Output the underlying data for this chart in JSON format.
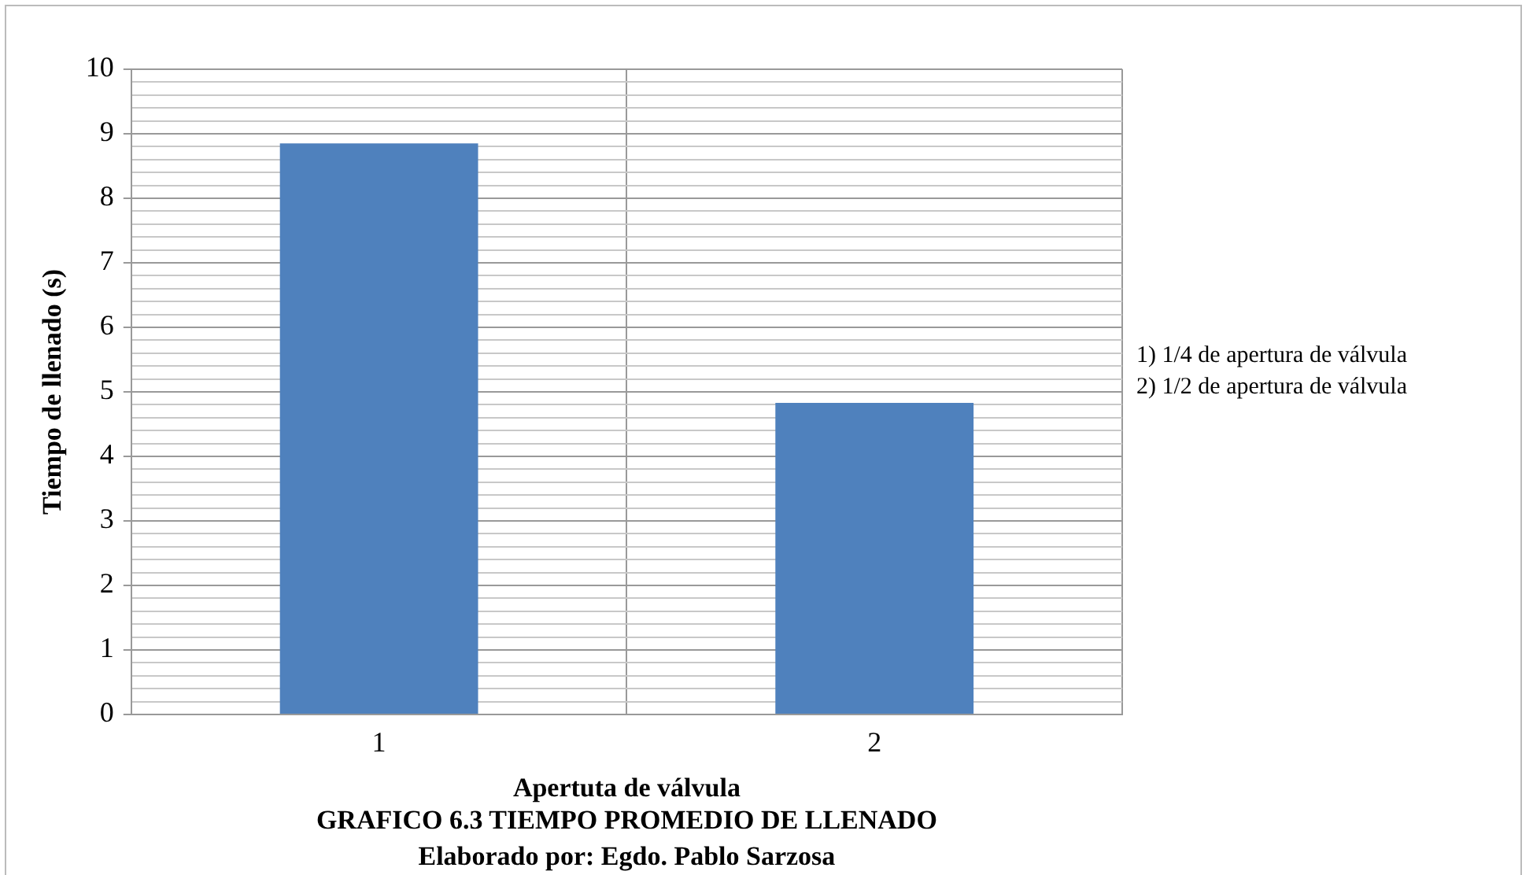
{
  "chart_data": {
    "type": "bar",
    "title": "GRAFICO 6.3 TIEMPO PROMEDIO DE LLENADO",
    "subtitle": "Elaborado por: Egdo. Pablo Sarzosa",
    "xlabel": "Apertuta de válvula",
    "ylabel": "Tiempo de llenado (s)",
    "categories": [
      "1",
      "2"
    ],
    "values": [
      8.85,
      4.83
    ],
    "color": "#4f81bd",
    "ylim": [
      0,
      10
    ],
    "yticks": [
      0,
      {
        "value": 0.2,
        "label": null
      },
      {
        "value": 0.4,
        "label": null
      },
      {
        "value": 0.6,
        "label": null
      },
      {
        "value": 0.8,
        "label": null
      },
      1,
      {
        "value": 1.2,
        "label": null
      },
      {
        "value": 1.4,
        "label": null
      },
      {
        "value": 1.6,
        "label": null
      },
      {
        "value": 1.8,
        "label": null
      },
      2,
      {
        "value": 2.2,
        "label": null
      },
      {
        "value": 2.4,
        "label": null
      },
      {
        "value": 2.6,
        "label": null
      },
      {
        "value": 2.8,
        "label": null
      },
      3,
      {
        "value": 3.2,
        "label": null
      },
      {
        "value": 3.4,
        "label": null
      },
      {
        "value": 3.6,
        "label": null
      },
      {
        "value": 3.8,
        "label": null
      },
      4,
      {
        "value": 4.2,
        "label": null
      },
      {
        "value": 4.4,
        "label": null
      },
      {
        "value": 4.6,
        "label": null
      },
      {
        "value": 4.8,
        "label": null
      },
      5,
      {
        "value": 5.2,
        "label": null
      },
      {
        "value": 5.4,
        "label": null
      },
      {
        "value": 5.6,
        "label": null
      },
      {
        "value": 5.8,
        "label": null
      },
      6,
      {
        "value": 6.2,
        "label": null
      },
      {
        "value": 6.4,
        "label": null
      },
      {
        "value": 6.6,
        "label": null
      },
      {
        "value": 6.8,
        "label": null
      },
      7,
      {
        "value": 7.2,
        "label": null
      },
      {
        "value": 7.4,
        "label": null
      },
      {
        "value": 7.6,
        "label": null
      },
      {
        "value": 7.8,
        "label": null
      },
      8,
      {
        "value": 8.2,
        "label": null
      },
      {
        "value": 8.4,
        "label": null
      },
      {
        "value": 8.6,
        "label": null
      },
      {
        "value": 8.8,
        "label": null
      },
      9,
      {
        "value": 9.2,
        "label": null
      },
      {
        "value": 9.4,
        "label": null
      },
      {
        "value": 9.6,
        "label": null
      },
      {
        "value": 9.8,
        "label": null
      },
      10
    ],
    "grid": true,
    "annotations": [
      "1) 1/4 de apertura de válvula",
      "2) 1/2 de apertura de válvula"
    ]
  }
}
